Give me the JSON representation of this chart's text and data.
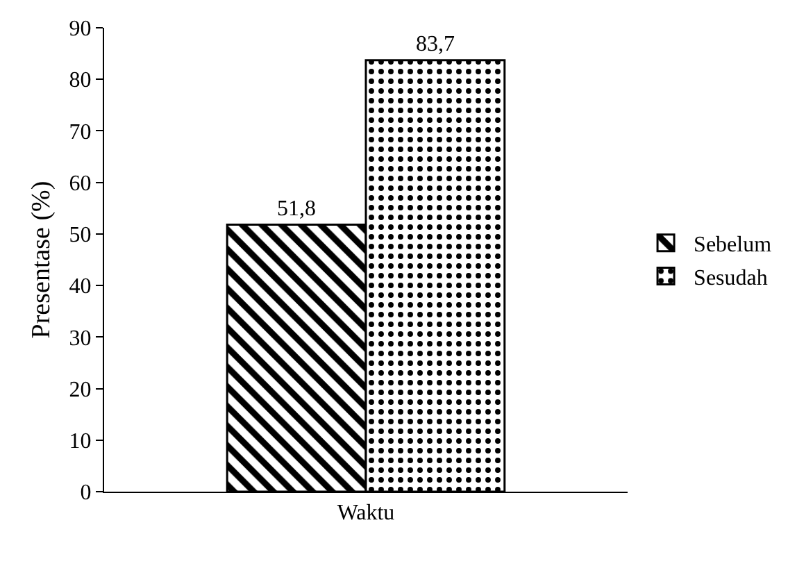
{
  "chart_data": {
    "type": "bar",
    "xlabel": null,
    "ylabel": "Presentase (%)",
    "categories": [
      "Waktu"
    ],
    "series": [
      {
        "name": "Sebelum",
        "color": "#000000",
        "values": [
          51.8
        ],
        "value_labels": [
          "51,8"
        ]
      },
      {
        "name": "Sesudah",
        "color": "#000000",
        "values": [
          83.7
        ],
        "value_labels": [
          "83,7"
        ]
      }
    ],
    "ylim": [
      0,
      90
    ],
    "yticks": [
      0,
      10,
      20,
      30,
      40,
      50,
      60,
      70,
      80,
      90
    ],
    "grid": false,
    "legend": "right"
  }
}
